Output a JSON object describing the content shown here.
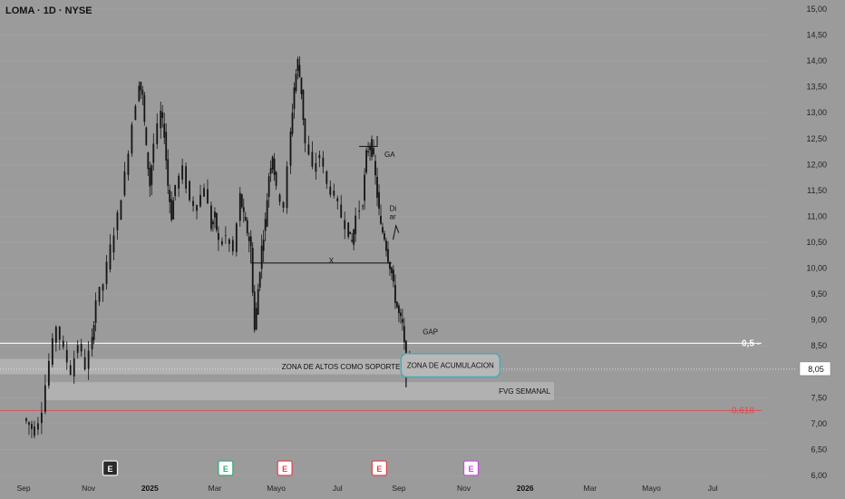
{
  "header": {
    "symbol": "LOMA · 1D · NYSE"
  },
  "colors": {
    "background": "#9b9b9b",
    "candle": "#141414",
    "fib_05_line": "#f2f2f2",
    "fib_0618_line": "#e0454f",
    "zone": "#b5b5b5",
    "accum_border": "#4aa9b5",
    "earnings_white": "#f2f2f2",
    "earnings_green": "#3aa874",
    "earnings_red": "#e0454f",
    "earnings_purple": "#c04fd6"
  },
  "chart_data": {
    "type": "candlestick",
    "y_axis": {
      "min": 6.0,
      "max": 15.0,
      "ticks": [
        "15,00",
        "14,50",
        "14,00",
        "13,50",
        "13,00",
        "12,50",
        "12,00",
        "11,50",
        "11,00",
        "10,50",
        "10,00",
        "9,50",
        "9,00",
        "8,50",
        "8,00",
        "7,50",
        "7,00",
        "6,50",
        "6,00"
      ]
    },
    "x_axis": {
      "ticks": [
        {
          "label": "Sep",
          "bold": false,
          "pos": 0.0
        },
        {
          "label": "Nov",
          "bold": false,
          "pos": 0.09
        },
        {
          "label": "2025",
          "bold": true,
          "pos": 0.175
        },
        {
          "label": "Mar",
          "bold": false,
          "pos": 0.265
        },
        {
          "label": "Mayo",
          "bold": false,
          "pos": 0.35
        },
        {
          "label": "Jul",
          "bold": false,
          "pos": 0.435
        },
        {
          "label": "Sep",
          "bold": false,
          "pos": 0.52
        },
        {
          "label": "Nov",
          "bold": false,
          "pos": 0.61
        },
        {
          "label": "2026",
          "bold": true,
          "pos": 0.695
        },
        {
          "label": "Mar",
          "bold": false,
          "pos": 0.785
        },
        {
          "label": "Mayo",
          "bold": false,
          "pos": 0.87
        },
        {
          "label": "Jul",
          "bold": false,
          "pos": 0.955
        }
      ]
    },
    "price_path": [
      [
        0.0,
        7.1
      ],
      [
        0.015,
        6.85
      ],
      [
        0.025,
        7.3
      ],
      [
        0.035,
        8.2
      ],
      [
        0.045,
        8.9
      ],
      [
        0.055,
        8.4
      ],
      [
        0.065,
        8.0
      ],
      [
        0.075,
        8.55
      ],
      [
        0.085,
        8.1
      ],
      [
        0.095,
        8.6
      ],
      [
        0.1,
        9.4
      ],
      [
        0.11,
        9.7
      ],
      [
        0.12,
        10.4
      ],
      [
        0.13,
        11.0
      ],
      [
        0.14,
        11.8
      ],
      [
        0.15,
        12.8
      ],
      [
        0.16,
        13.6
      ],
      [
        0.165,
        13.3
      ],
      [
        0.17,
        12.3
      ],
      [
        0.175,
        11.6
      ],
      [
        0.18,
        12.4
      ],
      [
        0.19,
        13.0
      ],
      [
        0.195,
        12.6
      ],
      [
        0.2,
        11.6
      ],
      [
        0.205,
        11.0
      ],
      [
        0.21,
        11.6
      ],
      [
        0.22,
        11.9
      ],
      [
        0.23,
        11.3
      ],
      [
        0.24,
        11.2
      ],
      [
        0.25,
        11.6
      ],
      [
        0.26,
        10.8
      ],
      [
        0.265,
        11.0
      ],
      [
        0.27,
        10.5
      ],
      [
        0.28,
        10.6
      ],
      [
        0.29,
        10.3
      ],
      [
        0.3,
        11.4
      ],
      [
        0.305,
        11.0
      ],
      [
        0.31,
        10.7
      ],
      [
        0.315,
        10.4
      ],
      [
        0.32,
        8.8
      ],
      [
        0.325,
        9.6
      ],
      [
        0.33,
        10.4
      ],
      [
        0.335,
        10.9
      ],
      [
        0.34,
        11.8
      ],
      [
        0.345,
        12.2
      ],
      [
        0.35,
        11.5
      ],
      [
        0.36,
        11.2
      ],
      [
        0.37,
        12.6
      ],
      [
        0.375,
        13.5
      ],
      [
        0.38,
        14.0
      ],
      [
        0.385,
        13.4
      ],
      [
        0.39,
        12.4
      ],
      [
        0.4,
        11.9
      ],
      [
        0.41,
        12.2
      ],
      [
        0.42,
        11.6
      ],
      [
        0.43,
        11.4
      ],
      [
        0.44,
        11.0
      ],
      [
        0.45,
        10.7
      ],
      [
        0.455,
        10.5
      ],
      [
        0.46,
        11.0
      ],
      [
        0.47,
        11.3
      ],
      [
        0.475,
        12.2
      ],
      [
        0.48,
        12.4
      ],
      [
        0.485,
        12.1
      ],
      [
        0.49,
        11.4
      ],
      [
        0.495,
        10.8
      ],
      [
        0.5,
        10.6
      ],
      [
        0.505,
        10.2
      ],
      [
        0.51,
        9.9
      ],
      [
        0.515,
        9.4
      ],
      [
        0.52,
        9.1
      ],
      [
        0.525,
        8.9
      ],
      [
        0.53,
        8.1
      ],
      [
        0.535,
        8.3
      ]
    ],
    "levels": [
      {
        "name": "fib-0.5",
        "value": 8.55,
        "label": "0,5 -"
      },
      {
        "name": "last-price",
        "value": 8.05,
        "label": "8,05"
      },
      {
        "name": "fib-0.618",
        "value": 7.25,
        "label": "0,618 -"
      }
    ],
    "zones": [
      {
        "name": "zona-altos",
        "top": 8.25,
        "bottom": 7.95,
        "x_start": 0.0,
        "x_end": 0.525,
        "label": "ZONA DE ALTOS COMO  SOPORTE"
      },
      {
        "name": "fvg-semanal",
        "top": 7.8,
        "bottom": 7.45,
        "x_start": 0.03,
        "x_end": 0.735,
        "label": "FVG SEMANAL"
      }
    ],
    "annotations": [
      {
        "name": "ga-label",
        "text": "GA",
        "x": 0.5,
        "y": 12.15
      },
      {
        "name": "di-label",
        "text": "Di",
        "x": 0.507,
        "y": 11.1
      },
      {
        "name": "ar-label",
        "text": "ar",
        "x": 0.507,
        "y": 10.95
      },
      {
        "name": "x-label",
        "text": "X",
        "x": 0.423,
        "y": 10.1
      },
      {
        "name": "gap-label",
        "text": "GAP",
        "x": 0.553,
        "y": 8.72
      }
    ],
    "accumulation_zone": {
      "label": "ZONA DE ACUMULACION",
      "x_start": 0.523,
      "x_end": 0.66,
      "top": 8.35,
      "bottom": 7.9
    },
    "earnings_markers": [
      {
        "name": "earnings-1",
        "letter": "E",
        "pos": 0.12,
        "color": "white"
      },
      {
        "name": "earnings-2",
        "letter": "E",
        "pos": 0.28,
        "color": "green"
      },
      {
        "name": "earnings-3",
        "letter": "E",
        "pos": 0.362,
        "color": "red"
      },
      {
        "name": "earnings-4",
        "letter": "E",
        "pos": 0.493,
        "color": "red"
      },
      {
        "name": "earnings-5",
        "letter": "E",
        "pos": 0.62,
        "color": "purple"
      }
    ]
  }
}
